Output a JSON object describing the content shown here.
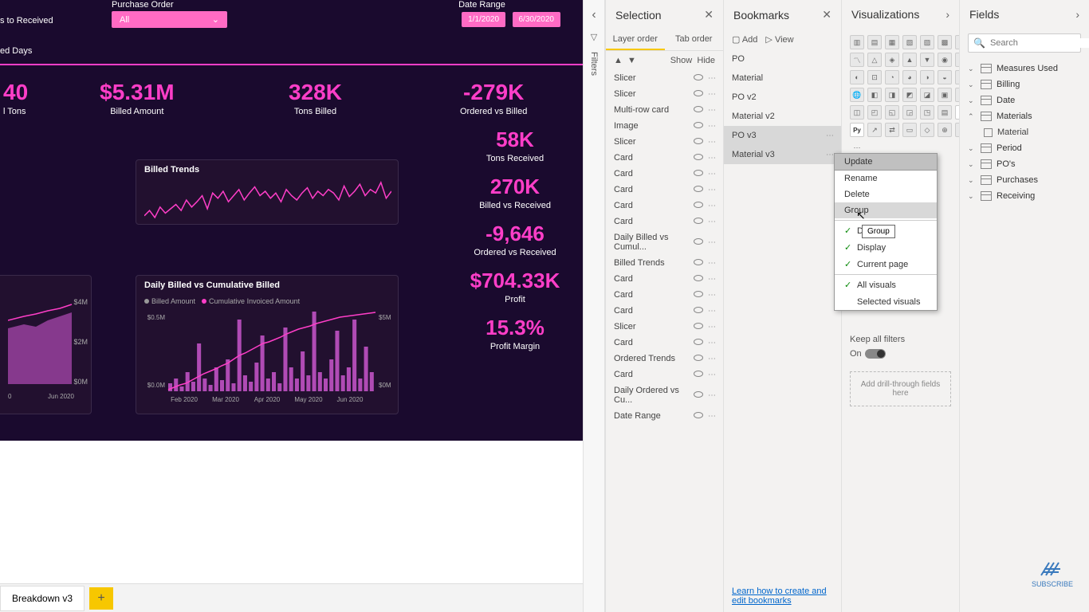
{
  "report": {
    "bg_color": "#1a0a2e",
    "accent": "#ff3ec8",
    "header_items": [
      "s to Received",
      "ed Days"
    ],
    "po_slicer": {
      "title": "Purchase Order",
      "value": "All"
    },
    "date_range": {
      "title": "Date Range",
      "start": "1/1/2020",
      "end": "6/30/2020"
    },
    "top_cards": [
      {
        "value": "40",
        "label": "l Tons"
      },
      {
        "value": "$5.31M",
        "label": "Billed Amount"
      },
      {
        "value": "328K",
        "label": "Tons Billed"
      },
      {
        "value": "-279K",
        "label": "Ordered vs Billed"
      }
    ],
    "side_cards": [
      {
        "value": "58K",
        "label": "Tons Received"
      },
      {
        "value": "270K",
        "label": "Billed vs Received"
      },
      {
        "value": "-9,646",
        "label": "Ordered vs Received"
      },
      {
        "value": "$704.33K",
        "label": "Profit"
      },
      {
        "value": "15.3%",
        "label": "Profit Margin"
      }
    ],
    "billed_trends": {
      "title": "Billed Trends",
      "line_color": "#ff3ec8",
      "points": [
        32,
        38,
        30,
        42,
        35,
        40,
        45,
        38,
        50,
        42,
        48,
        55,
        40,
        58,
        52,
        60,
        48,
        55,
        62,
        50,
        58,
        65,
        55,
        60,
        52,
        58,
        48,
        62,
        55,
        50,
        58,
        64,
        52,
        60,
        55,
        62,
        58,
        50,
        66,
        54,
        60,
        68,
        55,
        62,
        58,
        70,
        52,
        60
      ]
    },
    "left_chart": {
      "y_labels": [
        "$4M",
        "$2M",
        "$0M"
      ],
      "x_labels": [
        "0",
        "Jun 2020"
      ],
      "area_color": "#b04bb5",
      "line_color": "#ff3ec8"
    },
    "daily_billed": {
      "title": "Daily Billed vs Cumulative Billed",
      "legend": [
        {
          "label": "Billed Amount",
          "color": "#999"
        },
        {
          "label": "Cumulative Invoiced Amount",
          "color": "#ff3ec8"
        }
      ],
      "y_left": [
        "$0.5M",
        "$0.0M"
      ],
      "y_right": [
        "$5M",
        "$0M"
      ],
      "x_labels": [
        "Feb 2020",
        "Mar 2020",
        "Apr 2020",
        "May 2020",
        "Jun 2020"
      ],
      "bar_color": "#b04bb5",
      "line_color": "#ff3ec8",
      "bars": [
        5,
        8,
        3,
        12,
        6,
        30,
        8,
        4,
        15,
        7,
        20,
        5,
        45,
        10,
        6,
        18,
        35,
        8,
        12,
        5,
        40,
        15,
        8,
        25,
        10,
        50,
        12,
        8,
        20,
        38,
        10,
        15,
        45,
        8,
        28,
        12
      ],
      "cum": [
        2,
        5,
        8,
        10,
        14,
        18,
        22,
        25,
        28,
        32,
        35,
        40,
        45,
        48,
        52,
        56,
        60,
        62,
        65,
        68,
        72,
        75,
        78,
        80,
        82,
        85,
        87,
        89,
        91,
        93,
        94,
        95,
        96,
        97,
        98,
        99
      ]
    },
    "tab_name": "Breakdown v3"
  },
  "filters_label": "Filters",
  "selection": {
    "title": "Selection",
    "tabs": [
      "Layer order",
      "Tab order"
    ],
    "show": "Show",
    "hide": "Hide",
    "items": [
      "Slicer",
      "Slicer",
      "Multi-row card",
      "Image",
      "Slicer",
      "Card",
      "Card",
      "Card",
      "Card",
      "Card",
      "Daily Billed vs Cumul...",
      "Billed Trends",
      "Card",
      "Card",
      "Card",
      "Slicer",
      "Card",
      "Ordered Trends",
      "Card",
      "Daily Ordered vs Cu...",
      "Date Range"
    ]
  },
  "bookmarks": {
    "title": "Bookmarks",
    "add": "Add",
    "view": "View",
    "items": [
      "PO",
      "Material",
      "PO v2",
      "Material v2",
      "PO v3",
      "Material v3"
    ],
    "selected_idx": [
      4,
      5
    ],
    "link": "Learn how to create and edit bookmarks"
  },
  "viz": {
    "title": "Visualizations",
    "context_menu": {
      "items": [
        "Update",
        "Rename",
        "Delete",
        "Group"
      ],
      "hovered": "Group",
      "checks": [
        "Data",
        "Display",
        "Current page"
      ],
      "radio": [
        "All visuals",
        "Selected visuals"
      ],
      "tooltip": "Group"
    },
    "keep_filters": "Keep all filters",
    "toggle_label": "On",
    "drill": "Add drill-through fields here"
  },
  "fields": {
    "title": "Fields",
    "search_ph": "Search",
    "groups": [
      {
        "name": "Measures Used",
        "expanded": false
      },
      {
        "name": "Billing",
        "expanded": false
      },
      {
        "name": "Date",
        "expanded": false
      },
      {
        "name": "Materials",
        "expanded": true,
        "children": [
          "Material"
        ]
      },
      {
        "name": "Period",
        "expanded": false
      },
      {
        "name": "PO's",
        "expanded": false
      },
      {
        "name": "Purchases",
        "expanded": false
      },
      {
        "name": "Receiving",
        "expanded": false
      }
    ]
  },
  "subscribe": "SUBSCRIBE"
}
